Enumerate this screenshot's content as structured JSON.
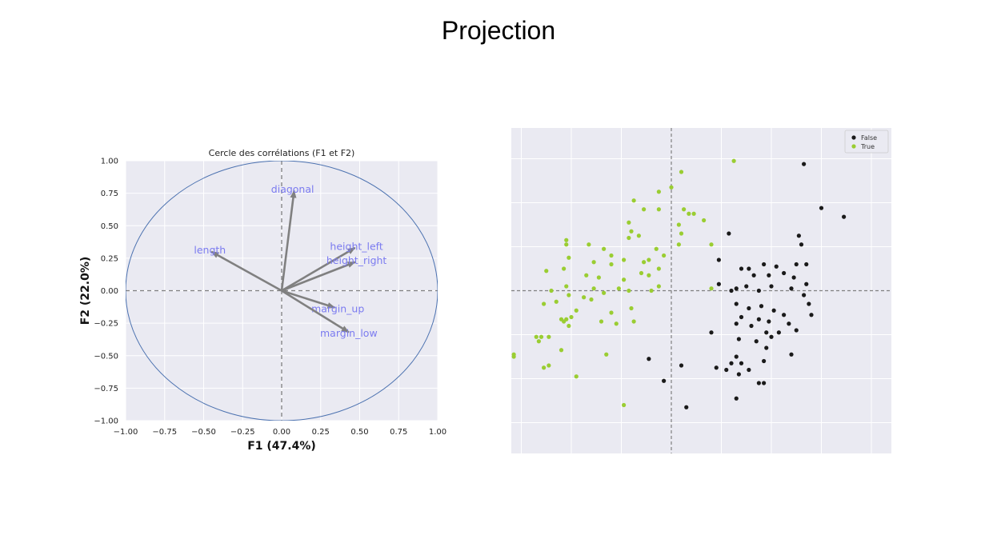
{
  "slide_title": "Projection",
  "colors": {
    "plot_bg": "#eaeaf2",
    "grid": "#ffffff",
    "circle": "#4c72b0",
    "arrow": "#808080",
    "arrow_label": "#7b7bf0",
    "false_points": "#1a1a1a",
    "true_points": "#9acd32"
  },
  "chart_data": [
    {
      "type": "line",
      "title": "Cercle des corrélations (F1 et F2)",
      "xlabel": "F1 (47.4%)",
      "ylabel": "F2 (22.0%)",
      "xlim": [
        -1,
        1
      ],
      "ylim": [
        -1,
        1
      ],
      "grid": true,
      "xticks": [
        -1.0,
        -0.75,
        -0.5,
        -0.25,
        0.0,
        0.25,
        0.5,
        0.75,
        1.0
      ],
      "yticks": [
        -1.0,
        -0.75,
        -0.5,
        -0.25,
        0.0,
        0.25,
        0.5,
        0.75,
        1.0
      ],
      "xtick_labels": [
        "−1.00",
        "−0.75",
        "−0.50",
        "−0.25",
        "0.00",
        "0.25",
        "0.50",
        "0.75",
        "1.00"
      ],
      "ytick_labels": [
        "−1.00",
        "−0.75",
        "−0.50",
        "−0.25",
        "0.00",
        "0.25",
        "0.50",
        "0.75",
        "1.00"
      ],
      "vectors": [
        {
          "name": "diagonal",
          "x": 0.08,
          "y": 0.77,
          "label_x": 0.07,
          "label_y": 0.78
        },
        {
          "name": "length",
          "x": -0.45,
          "y": 0.3,
          "label_x": -0.46,
          "label_y": 0.31
        },
        {
          "name": "height_left",
          "x": 0.47,
          "y": 0.33,
          "label_x": 0.48,
          "label_y": 0.34
        },
        {
          "name": "height_right",
          "x": 0.47,
          "y": 0.22,
          "label_x": 0.48,
          "label_y": 0.23
        },
        {
          "name": "margin_up",
          "x": 0.34,
          "y": -0.13,
          "label_x": 0.36,
          "label_y": -0.14
        },
        {
          "name": "margin_low",
          "x": 0.43,
          "y": -0.32,
          "label_x": 0.43,
          "label_y": -0.33
        }
      ]
    },
    {
      "type": "scatter",
      "title": "",
      "xlabel": "",
      "ylabel": "",
      "xlim": [
        -3.2,
        4.4
      ],
      "ylim": [
        -3.7,
        3.7
      ],
      "grid": true,
      "legend": "top-right",
      "series": [
        {
          "name": "False",
          "color": "#1a1a1a",
          "points": [
            [
              2.65,
              2.88
            ],
            [
              3.0,
              1.88
            ],
            [
              3.45,
              1.68
            ],
            [
              2.55,
              1.25
            ],
            [
              1.15,
              1.3
            ],
            [
              2.6,
              1.05
            ],
            [
              2.7,
              0.6
            ],
            [
              0.95,
              0.7
            ],
            [
              1.4,
              0.5
            ],
            [
              1.55,
              0.5
            ],
            [
              1.85,
              0.6
            ],
            [
              2.1,
              0.55
            ],
            [
              2.5,
              0.6
            ],
            [
              1.65,
              0.35
            ],
            [
              1.95,
              0.35
            ],
            [
              2.25,
              0.4
            ],
            [
              2.45,
              0.3
            ],
            [
              2.7,
              0.15
            ],
            [
              0.95,
              0.15
            ],
            [
              1.2,
              0.0
            ],
            [
              1.3,
              0.05
            ],
            [
              1.5,
              0.1
            ],
            [
              1.75,
              0.0
            ],
            [
              2.0,
              0.1
            ],
            [
              2.4,
              0.05
            ],
            [
              2.65,
              -0.1
            ],
            [
              2.75,
              -0.3
            ],
            [
              1.3,
              -0.3
            ],
            [
              1.55,
              -0.4
            ],
            [
              1.8,
              -0.35
            ],
            [
              2.05,
              -0.45
            ],
            [
              2.25,
              -0.55
            ],
            [
              2.8,
              -0.55
            ],
            [
              1.4,
              -0.6
            ],
            [
              1.75,
              -0.65
            ],
            [
              1.95,
              -0.7
            ],
            [
              2.35,
              -0.75
            ],
            [
              0.8,
              -0.95
            ],
            [
              1.3,
              -0.75
            ],
            [
              1.6,
              -0.8
            ],
            [
              1.9,
              -0.95
            ],
            [
              2.0,
              -1.05
            ],
            [
              2.15,
              -0.95
            ],
            [
              2.5,
              -0.9
            ],
            [
              1.35,
              -1.1
            ],
            [
              1.7,
              -1.15
            ],
            [
              1.9,
              -1.3
            ],
            [
              2.4,
              -1.45
            ],
            [
              1.3,
              -1.5
            ],
            [
              1.2,
              -1.65
            ],
            [
              1.4,
              -1.65
            ],
            [
              1.55,
              -1.8
            ],
            [
              1.85,
              -1.6
            ],
            [
              0.2,
              -1.7
            ],
            [
              0.9,
              -1.75
            ],
            [
              1.1,
              -1.8
            ],
            [
              1.35,
              -1.9
            ],
            [
              1.75,
              -2.1
            ],
            [
              1.85,
              -2.1
            ],
            [
              -0.15,
              -2.05
            ],
            [
              1.3,
              -2.45
            ],
            [
              0.3,
              -2.65
            ],
            [
              -0.45,
              -1.55
            ]
          ]
        },
        {
          "name": "True",
          "color": "#9acd32",
          "points": [
            [
              1.25,
              2.95
            ],
            [
              0.2,
              2.7
            ],
            [
              0.0,
              2.35
            ],
            [
              -0.25,
              2.25
            ],
            [
              -0.75,
              2.05
            ],
            [
              -0.55,
              1.85
            ],
            [
              -0.25,
              1.85
            ],
            [
              0.25,
              1.85
            ],
            [
              0.35,
              1.75
            ],
            [
              0.45,
              1.75
            ],
            [
              0.15,
              1.5
            ],
            [
              0.65,
              1.6
            ],
            [
              -0.85,
              1.55
            ],
            [
              -0.8,
              1.35
            ],
            [
              0.2,
              1.3
            ],
            [
              0.8,
              1.05
            ],
            [
              0.15,
              1.05
            ],
            [
              -2.1,
              1.15
            ],
            [
              -2.1,
              1.05
            ],
            [
              -1.65,
              1.05
            ],
            [
              -0.85,
              1.2
            ],
            [
              -0.65,
              1.25
            ],
            [
              -0.3,
              0.95
            ],
            [
              -1.35,
              0.95
            ],
            [
              -1.2,
              0.8
            ],
            [
              -0.15,
              0.8
            ],
            [
              -2.05,
              0.75
            ],
            [
              -1.55,
              0.65
            ],
            [
              -1.2,
              0.6
            ],
            [
              -0.95,
              0.7
            ],
            [
              -0.55,
              0.65
            ],
            [
              -0.45,
              0.7
            ],
            [
              -0.25,
              0.5
            ],
            [
              -2.15,
              0.5
            ],
            [
              -2.5,
              0.45
            ],
            [
              -1.7,
              0.35
            ],
            [
              -1.45,
              0.3
            ],
            [
              -0.95,
              0.25
            ],
            [
              -0.6,
              0.4
            ],
            [
              -0.45,
              0.35
            ],
            [
              -2.1,
              0.1
            ],
            [
              -1.55,
              0.05
            ],
            [
              -1.05,
              0.05
            ],
            [
              -0.85,
              0.0
            ],
            [
              -0.4,
              0.0
            ],
            [
              -0.25,
              0.1
            ],
            [
              -2.4,
              0.0
            ],
            [
              0.8,
              0.05
            ],
            [
              -2.05,
              -0.1
            ],
            [
              -1.75,
              -0.15
            ],
            [
              -1.6,
              -0.2
            ],
            [
              -1.35,
              -0.05
            ],
            [
              -2.3,
              -0.25
            ],
            [
              -2.55,
              -0.3
            ],
            [
              -1.9,
              -0.45
            ],
            [
              -2.0,
              -0.6
            ],
            [
              -1.2,
              -0.5
            ],
            [
              -0.8,
              -0.4
            ],
            [
              -2.2,
              -0.65
            ],
            [
              -1.4,
              -0.7
            ],
            [
              -1.1,
              -0.75
            ],
            [
              -0.75,
              -0.7
            ],
            [
              -2.1,
              -0.65
            ],
            [
              -2.15,
              -0.7
            ],
            [
              -2.05,
              -0.8
            ],
            [
              -2.45,
              -1.05
            ],
            [
              -2.7,
              -1.05
            ],
            [
              -2.6,
              -1.05
            ],
            [
              -2.65,
              -1.15
            ],
            [
              -2.2,
              -1.35
            ],
            [
              -1.3,
              -1.45
            ],
            [
              -2.55,
              -1.75
            ],
            [
              -2.45,
              -1.7
            ],
            [
              -1.9,
              -1.95
            ],
            [
              -3.15,
              -1.45
            ],
            [
              -3.15,
              -1.5
            ],
            [
              -0.95,
              -2.6
            ]
          ]
        }
      ]
    }
  ]
}
